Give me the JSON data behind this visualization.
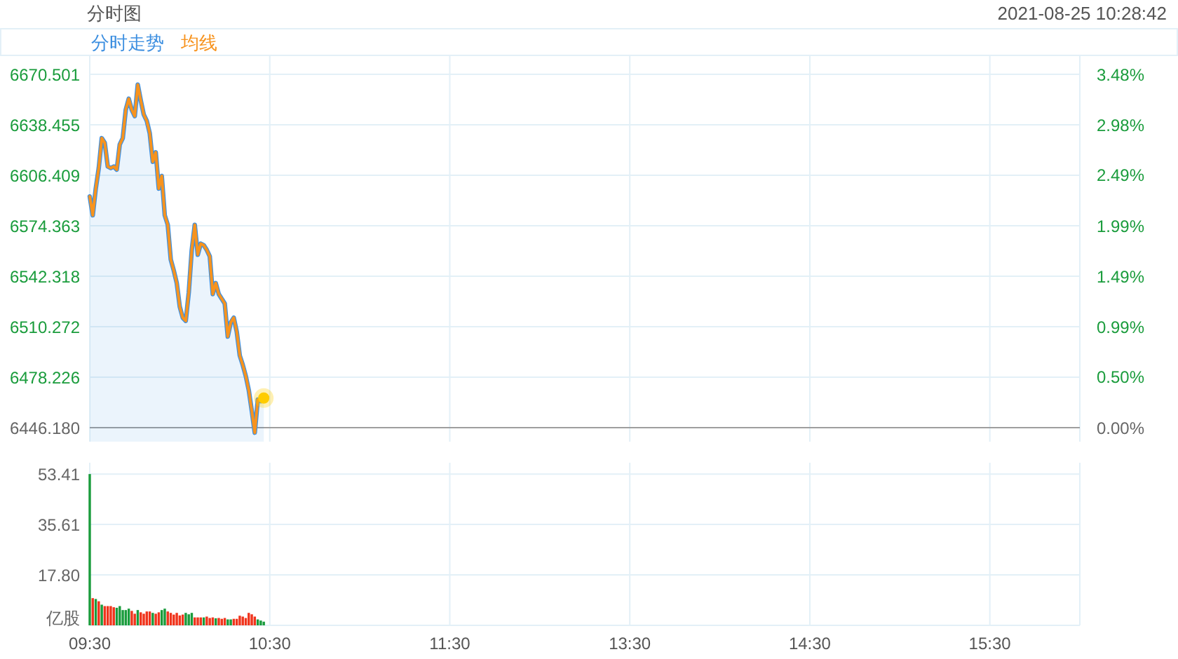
{
  "chart_data": [
    {
      "type": "line",
      "title": "分时图",
      "subtitle": "2021-08-25 10:28:42",
      "legend": "top left",
      "grid": true,
      "tick_labels": "y",
      "categories": [
        null,
        null,
        null,
        null,
        null,
        null,
        null,
        null,
        null,
        null,
        null,
        null,
        null,
        null,
        null,
        null,
        null,
        null,
        null,
        null,
        null,
        null,
        null,
        null,
        null,
        null,
        null,
        null,
        null,
        null,
        null,
        null,
        null,
        null,
        null,
        null,
        null,
        null,
        null,
        null,
        null,
        null,
        null,
        null,
        null,
        null,
        null,
        null,
        null,
        null,
        null,
        null,
        null,
        null,
        null,
        null,
        null,
        null,
        null,
        null,
        null,
        null,
        null,
        null,
        null,
        null,
        null,
        null,
        null,
        null,
        null,
        null,
        null,
        null,
        null,
        null,
        null,
        null,
        null,
        null,
        null,
        null,
        null,
        null,
        null,
        null,
        null,
        null,
        null,
        null,
        null,
        null,
        null,
        null,
        null,
        null,
        null,
        null,
        null,
        null,
        null,
        null,
        null,
        null,
        null,
        null,
        null,
        null,
        null,
        null,
        null,
        null,
        null,
        null,
        null,
        null,
        null,
        null,
        null,
        null,
        null,
        null,
        null,
        null,
        null,
        null,
        null,
        null,
        null,
        null,
        null,
        null,
        null,
        null,
        null,
        null,
        null,
        null,
        null,
        null,
        null,
        null,
        null,
        null,
        null,
        null,
        null,
        null,
        null,
        null,
        null,
        null,
        null,
        null,
        null,
        null,
        null,
        null,
        null,
        null,
        null,
        null,
        null,
        null,
        null,
        null,
        null,
        null,
        null,
        null,
        null,
        null,
        null,
        null,
        null,
        null,
        null,
        null,
        null,
        null,
        null,
        null,
        null,
        null,
        null,
        null,
        null,
        null,
        null,
        null,
        null,
        null,
        null,
        null,
        null,
        null,
        null,
        null,
        null,
        null,
        null,
        null,
        null,
        null,
        null,
        null,
        null,
        null,
        null,
        null,
        null,
        null,
        null,
        null,
        null,
        null,
        null,
        null,
        null,
        null,
        null,
        null,
        null,
        null,
        null,
        null,
        null,
        null,
        null,
        null,
        null,
        null,
        null,
        null,
        null,
        null,
        null,
        null,
        null,
        null,
        null,
        null,
        null,
        null,
        null,
        null,
        null,
        null,
        null,
        null,
        null,
        null,
        null,
        null,
        null,
        null,
        null,
        null,
        null,
        null,
        null,
        null,
        null,
        null,
        null,
        null,
        null,
        null,
        null,
        null,
        null,
        null,
        null,
        null,
        null,
        null,
        null,
        null,
        null,
        null,
        null,
        null,
        null,
        null,
        null,
        null,
        null,
        null,
        null,
        null,
        null,
        null,
        null,
        null,
        null,
        null,
        null,
        null,
        null,
        null,
        null,
        null,
        null,
        null,
        null,
        null,
        null,
        null,
        null,
        null,
        null,
        null,
        null,
        null,
        null,
        null,
        null,
        null,
        null,
        null,
        null,
        null,
        null,
        null,
        null,
        null,
        null,
        null,
        null,
        null,
        null
      ],
      "ylim": [
        6437.3,
        6682.1
      ],
      "yticks": [
        {
          "value": 6446.18,
          "label": "6446.180"
        },
        6478.226,
        6510.272,
        6542.318,
        6574.363,
        6606.409,
        6638.455,
        6670.501
      ],
      "y2lim": [
        -0.14,
        3.66
      ],
      "y2ticks": [
        {
          "value": 0,
          "label": "0.00%"
        },
        {
          "value": 0.5,
          "label": "0.50%"
        },
        {
          "value": 0.99,
          "label": "0.99%"
        },
        {
          "value": 1.49,
          "label": "1.49%"
        },
        {
          "value": 1.99,
          "label": "1.99%"
        },
        {
          "value": 2.49,
          "label": "2.49%"
        },
        {
          "value": 2.98,
          "label": "2.98%"
        },
        {
          "value": 3.48,
          "label": "3.48%"
        }
      ],
      "ref_lines": [
        {
          "axis": "y",
          "value": 6446.18,
          "color": "#9e9e9e"
        }
      ],
      "series": [
        {
          "name": "分时走势",
          "type": "area",
          "color": "#3d8fe0",
          "values": [
            6593,
            6581,
            6598,
            6611,
            6630,
            6627,
            6612,
            6611,
            6612,
            6610,
            6626,
            6630,
            6648,
            6655,
            6648,
            6644,
            6664,
            6654,
            6645,
            6641,
            6633,
            6615,
            6621,
            6598,
            6606,
            6581,
            6575,
            6553,
            6546,
            6538,
            6523,
            6516,
            6514,
            6532,
            6559,
            6575,
            6556,
            6563,
            6562,
            6559,
            6555,
            6531,
            6538,
            6531,
            6528,
            6525,
            6504,
            6513,
            6516,
            6507,
            6492,
            6486,
            6479,
            6470,
            6457,
            6443,
            6464,
            6463,
            6465,
            null,
            null,
            null,
            null,
            null,
            null,
            null,
            null,
            null,
            null,
            null,
            null,
            null,
            null,
            null,
            null,
            null,
            null,
            null,
            null,
            null,
            null,
            null,
            null,
            null,
            null,
            null,
            null,
            null,
            null,
            null,
            null,
            null,
            null,
            null,
            null,
            null,
            null,
            null,
            null,
            null,
            null,
            null,
            null,
            null,
            null,
            null,
            null,
            null,
            null,
            null,
            null,
            null,
            null,
            null,
            null,
            null,
            null,
            null,
            null,
            null,
            null,
            null,
            null,
            null,
            null,
            null,
            null,
            null,
            null,
            null,
            null,
            null,
            null,
            null,
            null,
            null,
            null,
            null,
            null,
            null,
            null,
            null,
            null,
            null,
            null,
            null,
            null,
            null,
            null,
            null,
            null,
            null,
            null,
            null,
            null,
            null,
            null,
            null,
            null,
            null,
            null,
            null,
            null,
            null,
            null,
            null,
            null,
            null,
            null,
            null,
            null,
            null,
            null,
            null,
            null,
            null,
            null,
            null,
            null,
            null,
            null,
            null,
            null,
            null,
            null,
            null,
            null,
            null,
            null,
            null,
            null,
            null,
            null,
            null,
            null,
            null,
            null,
            null,
            null,
            null,
            null,
            null,
            null,
            null,
            null,
            null,
            null,
            null,
            null,
            null,
            null,
            null,
            null,
            null,
            null,
            null,
            null,
            null,
            null,
            null,
            null,
            null,
            null,
            null,
            null,
            null,
            null,
            null,
            null,
            null,
            null,
            null,
            null,
            null,
            null,
            null,
            null,
            null,
            null,
            null,
            null,
            null,
            null,
            null,
            null,
            null,
            null,
            null,
            null,
            null,
            null,
            null,
            null,
            null,
            null,
            null,
            null,
            null,
            null,
            null,
            null,
            null,
            null,
            null,
            null,
            null,
            null,
            null,
            null,
            null,
            null,
            null,
            null,
            null,
            null,
            null,
            null,
            null,
            null,
            null,
            null,
            null,
            null,
            null,
            null,
            null,
            null,
            null,
            null,
            null,
            null,
            null,
            null,
            null,
            null,
            null,
            null,
            null,
            null,
            null,
            null,
            null,
            null,
            null,
            null,
            null,
            null,
            null,
            null,
            null,
            null,
            null,
            null,
            null,
            null,
            null,
            null,
            null,
            null,
            null,
            null,
            null,
            null,
            null,
            null,
            null,
            null,
            null,
            null,
            null,
            null
          ]
        },
        {
          "name": "均线",
          "type": "line",
          "color": "#f7931e",
          "values": [
            6593,
            6581,
            6598,
            6611,
            6630,
            6627,
            6612,
            6611,
            6612,
            6610,
            6626,
            6630,
            6648,
            6655,
            6648,
            6644,
            6664,
            6654,
            6645,
            6641,
            6633,
            6615,
            6621,
            6598,
            6606,
            6581,
            6575,
            6553,
            6546,
            6538,
            6523,
            6516,
            6514,
            6532,
            6559,
            6575,
            6556,
            6563,
            6562,
            6559,
            6555,
            6531,
            6538,
            6531,
            6528,
            6525,
            6504,
            6513,
            6516,
            6507,
            6492,
            6486,
            6479,
            6470,
            6457,
            6443,
            6464,
            6463,
            6465,
            null,
            null,
            null,
            null,
            null,
            null,
            null,
            null,
            null,
            null,
            null,
            null,
            null,
            null,
            null,
            null,
            null,
            null,
            null,
            null,
            null,
            null,
            null,
            null,
            null,
            null,
            null,
            null,
            null,
            null,
            null,
            null,
            null,
            null,
            null,
            null,
            null,
            null,
            null,
            null,
            null,
            null,
            null,
            null,
            null,
            null,
            null,
            null,
            null,
            null,
            null,
            null,
            null,
            null,
            null,
            null,
            null,
            null,
            null,
            null,
            null,
            null,
            null,
            null,
            null,
            null,
            null,
            null,
            null,
            null,
            null,
            null,
            null,
            null,
            null,
            null,
            null,
            null,
            null,
            null,
            null,
            null,
            null,
            null,
            null,
            null,
            null,
            null,
            null,
            null,
            null,
            null,
            null,
            null,
            null,
            null,
            null,
            null,
            null,
            null,
            null,
            null,
            null,
            null,
            null,
            null,
            null,
            null,
            null,
            null,
            null,
            null,
            null,
            null,
            null,
            null,
            null,
            null,
            null,
            null,
            null,
            null,
            null,
            null,
            null,
            null,
            null,
            null,
            null,
            null,
            null,
            null,
            null,
            null,
            null,
            null,
            null,
            null,
            null,
            null,
            null,
            null,
            null,
            null,
            null,
            null,
            null,
            null,
            null,
            null,
            null,
            null,
            null,
            null,
            null,
            null,
            null,
            null,
            null,
            null,
            null,
            null,
            null,
            null,
            null,
            null,
            null,
            null,
            null,
            null,
            null,
            null,
            null,
            null,
            null,
            null,
            null,
            null,
            null,
            null,
            null,
            null,
            null,
            null,
            null,
            null,
            null,
            null,
            null,
            null,
            null,
            null,
            null,
            null,
            null,
            null,
            null,
            null,
            null,
            null,
            null,
            null,
            null,
            null,
            null,
            null,
            null,
            null,
            null,
            null,
            null,
            null,
            null,
            null,
            null,
            null,
            null,
            null,
            null,
            null,
            null,
            null,
            null,
            null,
            null,
            null,
            null,
            null,
            null,
            null,
            null,
            null,
            null,
            null,
            null,
            null,
            null,
            null,
            null,
            null,
            null,
            null,
            null,
            null,
            null,
            null,
            null,
            null,
            null,
            null,
            null,
            null,
            null,
            null,
            null,
            null,
            null,
            null,
            null,
            null,
            null,
            null,
            null,
            null,
            null,
            null,
            null,
            null,
            null,
            null,
            null,
            null
          ]
        },
        {
          "type": "scatter",
          "color": "#ffcc00",
          "marker": "circle",
          "values": [
            null,
            null,
            null,
            null,
            null,
            null,
            null,
            null,
            null,
            null,
            null,
            null,
            null,
            null,
            null,
            null,
            null,
            null,
            null,
            null,
            null,
            null,
            null,
            null,
            null,
            null,
            null,
            null,
            null,
            null,
            null,
            null,
            null,
            null,
            null,
            null,
            null,
            null,
            null,
            null,
            null,
            null,
            null,
            null,
            null,
            null,
            null,
            null,
            null,
            null,
            null,
            null,
            null,
            null,
            null,
            null,
            null,
            null,
            6465,
            null,
            null,
            null,
            null,
            null,
            null,
            null,
            null,
            null,
            null,
            null,
            null,
            null,
            null,
            null,
            null,
            null,
            null,
            null,
            null,
            null,
            null,
            null,
            null,
            null,
            null,
            null,
            null,
            null,
            null,
            null,
            null,
            null,
            null,
            null,
            null,
            null,
            null,
            null,
            null,
            null,
            null,
            null,
            null,
            null,
            null,
            null,
            null,
            null,
            null,
            null,
            null,
            null,
            null,
            null,
            null,
            null,
            null,
            null,
            null,
            null,
            null,
            null,
            null,
            null,
            null,
            null,
            null,
            null,
            null,
            null,
            null,
            null,
            null,
            null,
            null,
            null,
            null,
            null,
            null,
            null,
            null,
            null,
            null,
            null,
            null,
            null,
            null,
            null,
            null,
            null,
            null,
            null,
            null,
            null,
            null,
            null,
            null,
            null,
            null,
            null,
            null,
            null,
            null,
            null,
            null,
            null,
            null,
            null,
            null,
            null,
            null,
            null,
            null,
            null,
            null,
            null,
            null,
            null,
            null,
            null,
            null,
            null,
            null,
            null,
            null,
            null,
            null,
            null,
            null,
            null,
            null,
            null,
            null,
            null,
            null,
            null,
            null,
            null,
            null,
            null,
            null,
            null,
            null,
            null,
            null,
            null,
            null,
            null,
            null,
            null,
            null,
            null,
            null,
            null,
            null,
            null,
            null,
            null,
            null,
            null,
            null,
            null,
            null,
            null,
            null,
            null,
            null,
            null,
            null,
            null,
            null,
            null,
            null,
            null,
            null,
            null,
            null,
            null,
            null,
            null,
            null,
            null,
            null,
            null,
            null,
            null,
            null,
            null,
            null,
            null,
            null,
            null,
            null,
            null,
            null,
            null,
            null,
            null,
            null,
            null,
            null,
            null,
            null,
            null,
            null,
            null,
            null,
            null,
            null,
            null,
            null,
            null,
            null,
            null,
            null,
            null,
            null,
            null,
            null,
            null,
            null,
            null,
            null,
            null,
            null,
            null,
            null,
            null,
            null,
            null,
            null,
            null,
            null,
            null,
            null,
            null,
            null,
            null,
            null,
            null,
            null,
            null,
            null,
            null,
            null,
            null,
            null,
            null,
            null,
            null,
            null,
            null,
            null,
            null,
            null,
            null,
            null,
            null,
            null,
            null,
            null,
            null,
            null,
            null,
            null,
            null,
            null,
            null,
            null,
            null,
            null
          ]
        }
      ]
    },
    {
      "type": "bar",
      "grid": true,
      "categories": [
        "09:30",
        null,
        null,
        null,
        null,
        null,
        null,
        null,
        null,
        null,
        null,
        null,
        null,
        null,
        null,
        null,
        null,
        null,
        null,
        null,
        null,
        null,
        null,
        null,
        null,
        null,
        null,
        null,
        null,
        null,
        null,
        null,
        null,
        null,
        null,
        null,
        null,
        null,
        null,
        null,
        null,
        null,
        null,
        null,
        null,
        null,
        null,
        null,
        null,
        null,
        null,
        null,
        null,
        null,
        null,
        null,
        null,
        null,
        null,
        null,
        "10:30",
        null,
        null,
        null,
        null,
        null,
        null,
        null,
        null,
        null,
        null,
        null,
        null,
        null,
        null,
        null,
        null,
        null,
        null,
        null,
        null,
        null,
        null,
        null,
        null,
        null,
        null,
        null,
        null,
        null,
        null,
        null,
        null,
        null,
        null,
        null,
        null,
        null,
        null,
        null,
        null,
        null,
        null,
        null,
        null,
        null,
        null,
        null,
        null,
        null,
        null,
        null,
        null,
        null,
        null,
        null,
        null,
        null,
        null,
        null,
        "11:30",
        null,
        null,
        null,
        null,
        null,
        null,
        null,
        null,
        null,
        null,
        null,
        null,
        null,
        null,
        null,
        null,
        null,
        null,
        null,
        null,
        null,
        null,
        null,
        null,
        null,
        null,
        null,
        null,
        null,
        null,
        null,
        null,
        null,
        null,
        null,
        null,
        null,
        null,
        null,
        null,
        null,
        null,
        null,
        null,
        null,
        null,
        null,
        null,
        null,
        null,
        null,
        null,
        null,
        null,
        null,
        null,
        null,
        null,
        null,
        "13:30",
        null,
        null,
        null,
        null,
        null,
        null,
        null,
        null,
        null,
        null,
        null,
        null,
        null,
        null,
        null,
        null,
        null,
        null,
        null,
        null,
        null,
        null,
        null,
        null,
        null,
        null,
        null,
        null,
        null,
        null,
        null,
        null,
        null,
        null,
        null,
        null,
        null,
        null,
        null,
        null,
        null,
        null,
        null,
        null,
        null,
        null,
        null,
        null,
        null,
        null,
        null,
        null,
        null,
        null,
        null,
        null,
        null,
        null,
        null,
        "14:30",
        null,
        null,
        null,
        null,
        null,
        null,
        null,
        null,
        null,
        null,
        null,
        null,
        null,
        null,
        null,
        null,
        null,
        null,
        null,
        null,
        null,
        null,
        null,
        null,
        null,
        null,
        null,
        null,
        null,
        null,
        null,
        null,
        null,
        null,
        null,
        null,
        null,
        null,
        null,
        null,
        null,
        null,
        null,
        null,
        null,
        null,
        null,
        null,
        null,
        null,
        null,
        null,
        null,
        null,
        null,
        null,
        null,
        null,
        null,
        "15:30",
        null,
        null,
        null,
        null,
        null,
        null,
        null,
        null,
        null,
        null,
        null,
        null,
        null,
        null,
        null,
        null,
        null,
        null,
        null,
        null,
        null,
        null,
        null,
        null,
        null,
        null,
        null,
        null,
        null,
        null
      ],
      "ylim": [
        0,
        57.4
      ],
      "yticks": [
        {
          "value": 0,
          "label": "亿股"
        },
        {
          "value": 17.8,
          "label": "17.80"
        },
        35.61,
        53.41
      ],
      "values": [
        53.4,
        9.6,
        9.3,
        8.5,
        7.3,
        6.8,
        6.8,
        6.8,
        6.4,
        6.2,
        6.8,
        5.4,
        5.4,
        5.9,
        5.1,
        4.1,
        5.4,
        4.6,
        4.1,
        4.9,
        4.9,
        4.4,
        4.1,
        4.6,
        5.4,
        5.9,
        4.9,
        4.4,
        3.8,
        4.4,
        3.5,
        3.8,
        4.4,
        3.9,
        4.4,
        2.8,
        2.8,
        2.8,
        2.8,
        3.1,
        2.6,
        2.8,
        2.5,
        2.6,
        2.3,
        2.6,
        2.1,
        2.1,
        2.3,
        2.3,
        3.4,
        3.1,
        2.6,
        4.4,
        3.9,
        3.1,
        2.1,
        1.7,
        1.3,
        null,
        null,
        null,
        null,
        null,
        null,
        null,
        null,
        null,
        null,
        null,
        null,
        null,
        null,
        null,
        null,
        null,
        null,
        null,
        null,
        null,
        null,
        null,
        null,
        null,
        null,
        null,
        null,
        null,
        null,
        null,
        null,
        null,
        null,
        null,
        null,
        null,
        null,
        null,
        null,
        null,
        null,
        null,
        null,
        null,
        null,
        null,
        null,
        null,
        null,
        null,
        null,
        null,
        null,
        null,
        null,
        null,
        null,
        null,
        null,
        null,
        null,
        null,
        null,
        null,
        null,
        null,
        null,
        null,
        null,
        null,
        null,
        null,
        null,
        null,
        null,
        null,
        null,
        null,
        null,
        null,
        null,
        null,
        null,
        null,
        null,
        null,
        null,
        null,
        null,
        null,
        null,
        null,
        null,
        null,
        null,
        null,
        null,
        null,
        null,
        null,
        null,
        null,
        null,
        null,
        null,
        null,
        null,
        null,
        null,
        null,
        null,
        null,
        null,
        null,
        null,
        null,
        null,
        null,
        null,
        null,
        null,
        null,
        null,
        null,
        null,
        null,
        null,
        null,
        null,
        null,
        null,
        null,
        null,
        null,
        null,
        null,
        null,
        null,
        null,
        null,
        null,
        null,
        null,
        null,
        null,
        null,
        null,
        null,
        null,
        null,
        null,
        null,
        null,
        null,
        null,
        null,
        null,
        null,
        null,
        null,
        null,
        null,
        null,
        null,
        null,
        null,
        null,
        null,
        null,
        null,
        null,
        null,
        null,
        null,
        null,
        null,
        null,
        null,
        null,
        null,
        null,
        null,
        null,
        null,
        null,
        null,
        null,
        null,
        null,
        null,
        null,
        null,
        null,
        null,
        null,
        null,
        null,
        null,
        null,
        null,
        null,
        null,
        null,
        null,
        null,
        null,
        null,
        null,
        null,
        null,
        null,
        null,
        null,
        null,
        null,
        null,
        null,
        null,
        null,
        null,
        null,
        null,
        null,
        null,
        null,
        null,
        null,
        null,
        null,
        null,
        null,
        null,
        null,
        null,
        null,
        null,
        null,
        null,
        null,
        null,
        null,
        null,
        null,
        null,
        null,
        null,
        null,
        null,
        null,
        null,
        null,
        null,
        null,
        null,
        null,
        null,
        null,
        null,
        null,
        null,
        null,
        null,
        null,
        null,
        null,
        null,
        null,
        null,
        null,
        null,
        null
      ],
      "colors": [
        "#1a9c3c",
        "#f0341c",
        "#1a9c3c",
        "#f0341c",
        "#1a9c3c",
        "#f0341c",
        "#f0341c",
        "#f0341c",
        "#f0341c",
        "#1a9c3c",
        "#1a9c3c",
        "#1a9c3c",
        "#1a9c3c",
        "#1a9c3c",
        "#f0341c",
        "#f0341c",
        "#1a9c3c",
        "#f0341c",
        "#f0341c",
        "#f0341c",
        "#f0341c",
        "#1a9c3c",
        "#f0341c",
        "#f0341c",
        "#1a9c3c",
        "#1a9c3c",
        "#f0341c",
        "#f0341c",
        "#f0341c",
        "#f0341c",
        "#f0341c",
        "#f0341c",
        "#1a9c3c",
        "#1a9c3c",
        "#1a9c3c",
        "#f0341c",
        "#f0341c",
        "#f0341c",
        "#1a9c3c",
        "#f0341c",
        "#f0341c",
        "#f0341c",
        "#1a9c3c",
        "#f0341c",
        "#f0341c",
        "#f0341c",
        "#1a9c3c",
        "#1a9c3c",
        "#f0341c",
        "#f0341c",
        "#f0341c",
        "#f0341c",
        "#f0341c",
        "#f0341c",
        "#f0341c",
        "#f0341c",
        "#1a9c3c",
        "#1a9c3c",
        "#1a9c3c",
        null,
        null,
        null,
        null,
        null,
        null,
        null,
        null,
        null,
        null,
        null,
        null,
        null,
        null,
        null,
        null,
        null,
        null,
        null,
        null,
        null,
        null,
        null,
        null,
        null,
        null,
        null,
        null,
        null,
        null,
        null,
        null,
        null,
        null,
        null,
        null,
        null,
        null,
        null,
        null,
        null,
        null,
        null,
        null,
        null,
        null,
        null,
        null,
        null,
        null,
        null,
        null,
        null,
        null,
        null,
        null,
        null,
        null,
        null,
        null,
        null,
        null,
        null,
        null,
        null,
        null,
        null,
        null,
        null,
        null,
        null,
        null,
        null,
        null,
        null,
        null,
        null,
        null,
        null,
        null,
        null,
        null,
        null,
        null,
        null,
        null,
        null,
        null,
        null,
        null,
        null,
        null,
        null,
        null,
        null,
        null,
        null,
        null,
        null,
        null,
        null,
        null,
        null,
        null,
        null,
        null,
        null,
        null,
        null,
        null,
        null,
        null,
        null,
        null,
        null,
        null,
        null,
        null,
        null,
        null,
        null,
        null,
        null,
        null,
        null,
        null,
        null,
        null,
        null,
        null,
        null,
        null,
        null,
        null,
        null,
        null,
        null,
        null,
        null,
        null,
        null,
        null,
        null,
        null,
        null,
        null,
        null,
        null,
        null,
        null,
        null,
        null,
        null,
        null,
        null,
        null,
        null,
        null,
        null,
        null,
        null,
        null,
        null,
        null,
        null,
        null,
        null,
        null,
        null,
        null,
        null,
        null,
        null,
        null,
        null,
        null,
        null,
        null,
        null,
        null,
        null,
        null,
        null,
        null,
        null,
        null,
        null,
        null,
        null,
        null,
        null,
        null,
        null,
        null,
        null,
        null,
        null,
        null,
        null,
        null,
        null,
        null,
        null,
        null,
        null,
        null,
        null,
        null,
        null,
        null,
        null,
        null,
        null,
        null,
        null,
        null,
        null,
        null,
        null,
        null,
        null,
        null,
        null,
        null,
        null,
        null,
        null,
        null,
        null,
        null,
        null,
        null,
        null,
        null,
        null,
        null,
        null,
        null,
        null,
        null,
        null,
        null,
        null,
        null,
        null,
        null,
        null,
        null,
        null,
        null,
        null,
        null,
        null,
        null,
        null,
        null,
        null,
        null,
        null,
        null,
        null,
        null,
        null,
        null,
        null,
        null,
        null,
        null,
        null,
        null,
        null,
        null
      ]
    }
  ]
}
